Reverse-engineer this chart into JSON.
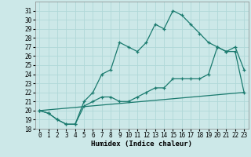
{
  "xlabel": "Humidex (Indice chaleur)",
  "bg_color": "#cce8e8",
  "grid_color": "#b0d8d8",
  "line_color": "#1a7a6e",
  "line1": {
    "x": [
      0,
      1,
      2,
      3,
      4,
      5,
      6,
      7,
      8,
      9,
      10,
      11,
      12,
      13,
      14,
      15,
      16,
      17,
      18,
      19,
      20,
      21,
      22,
      23
    ],
    "y": [
      20.0,
      19.7,
      19.0,
      18.5,
      18.5,
      21.0,
      22.0,
      24.0,
      24.5,
      27.5,
      27.0,
      26.5,
      27.5,
      29.5,
      29.0,
      31.0,
      30.5,
      29.5,
      28.5,
      27.5,
      27.0,
      26.5,
      27.0,
      24.5
    ]
  },
  "line2": {
    "x": [
      0,
      1,
      2,
      3,
      4,
      5,
      6,
      7,
      8,
      9,
      10,
      11,
      12,
      13,
      14,
      15,
      16,
      17,
      18,
      19,
      20,
      21,
      22,
      23
    ],
    "y": [
      20.0,
      19.7,
      19.0,
      18.5,
      18.5,
      20.5,
      21.0,
      21.5,
      21.5,
      21.0,
      21.0,
      21.5,
      22.0,
      22.5,
      22.5,
      23.5,
      23.5,
      23.5,
      23.5,
      24.0,
      27.0,
      26.5,
      26.5,
      22.0
    ]
  },
  "line3": {
    "x": [
      0,
      23
    ],
    "y": [
      20.0,
      22.0
    ]
  },
  "ylim": [
    18,
    32
  ],
  "xlim": [
    -0.5,
    23.5
  ],
  "yticks": [
    18,
    19,
    20,
    21,
    22,
    23,
    24,
    25,
    26,
    27,
    28,
    29,
    30,
    31
  ],
  "xticks": [
    0,
    1,
    2,
    3,
    4,
    5,
    6,
    7,
    8,
    9,
    10,
    11,
    12,
    13,
    14,
    15,
    16,
    17,
    18,
    19,
    20,
    21,
    22,
    23
  ],
  "label_fontsize": 6.5,
  "tick_fontsize": 5.5
}
